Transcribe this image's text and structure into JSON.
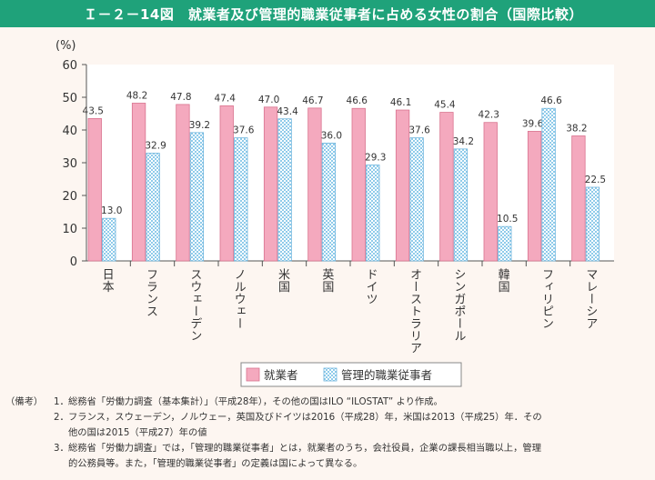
{
  "figure": {
    "title": "Ｉ－２－14図　就業者及び管理的職業従事者に占める女性の割合（国際比較）"
  },
  "chart_data": {
    "type": "bar",
    "ylabel": "(%)",
    "ylim": [
      0,
      60
    ],
    "yticks": [
      0,
      10,
      20,
      30,
      40,
      50,
      60
    ],
    "categories": [
      "日本",
      "フランス",
      "スウェーデン",
      "ノルウェー",
      "米国",
      "英国",
      "ドイツ",
      "オーストラリア",
      "シンガポール",
      "韓国",
      "フィリピン",
      "マレーシア"
    ],
    "series": [
      {
        "name": "就業者",
        "values": [
          43.5,
          48.2,
          47.8,
          47.4,
          47.0,
          46.7,
          46.6,
          46.1,
          45.4,
          42.3,
          39.6,
          38.2
        ],
        "color": "#f4a9be"
      },
      {
        "name": "管理的職業従事者",
        "values": [
          13.0,
          32.9,
          39.2,
          37.6,
          43.4,
          36.0,
          29.3,
          37.6,
          34.2,
          10.5,
          46.6,
          22.5
        ],
        "color": "#bfe3f5"
      }
    ],
    "legend_position": "bottom",
    "grid": false
  },
  "notes": {
    "heading": "（備考）",
    "items": [
      {
        "num": "1．",
        "lines": [
          "総務省「労働力調査（基本集計）」（平成28年），その他の国はILO “ILOSTAT” より作成。"
        ]
      },
      {
        "num": "2．",
        "lines": [
          "フランス，スウェーデン，ノルウェー，英国及びドイツは2016（平成28）年，米国は2013（平成25）年．その",
          "他の国は2015（平成27）年の値"
        ]
      },
      {
        "num": "3．",
        "lines": [
          "総務省「労働力調査」では，「管理的職業従事者」とは，就業者のうち，会社役員，企業の課長相当職以上，管理",
          "的公務員等。また，「管理的職業従事者」の定義は国によって異なる。"
        ]
      }
    ]
  }
}
